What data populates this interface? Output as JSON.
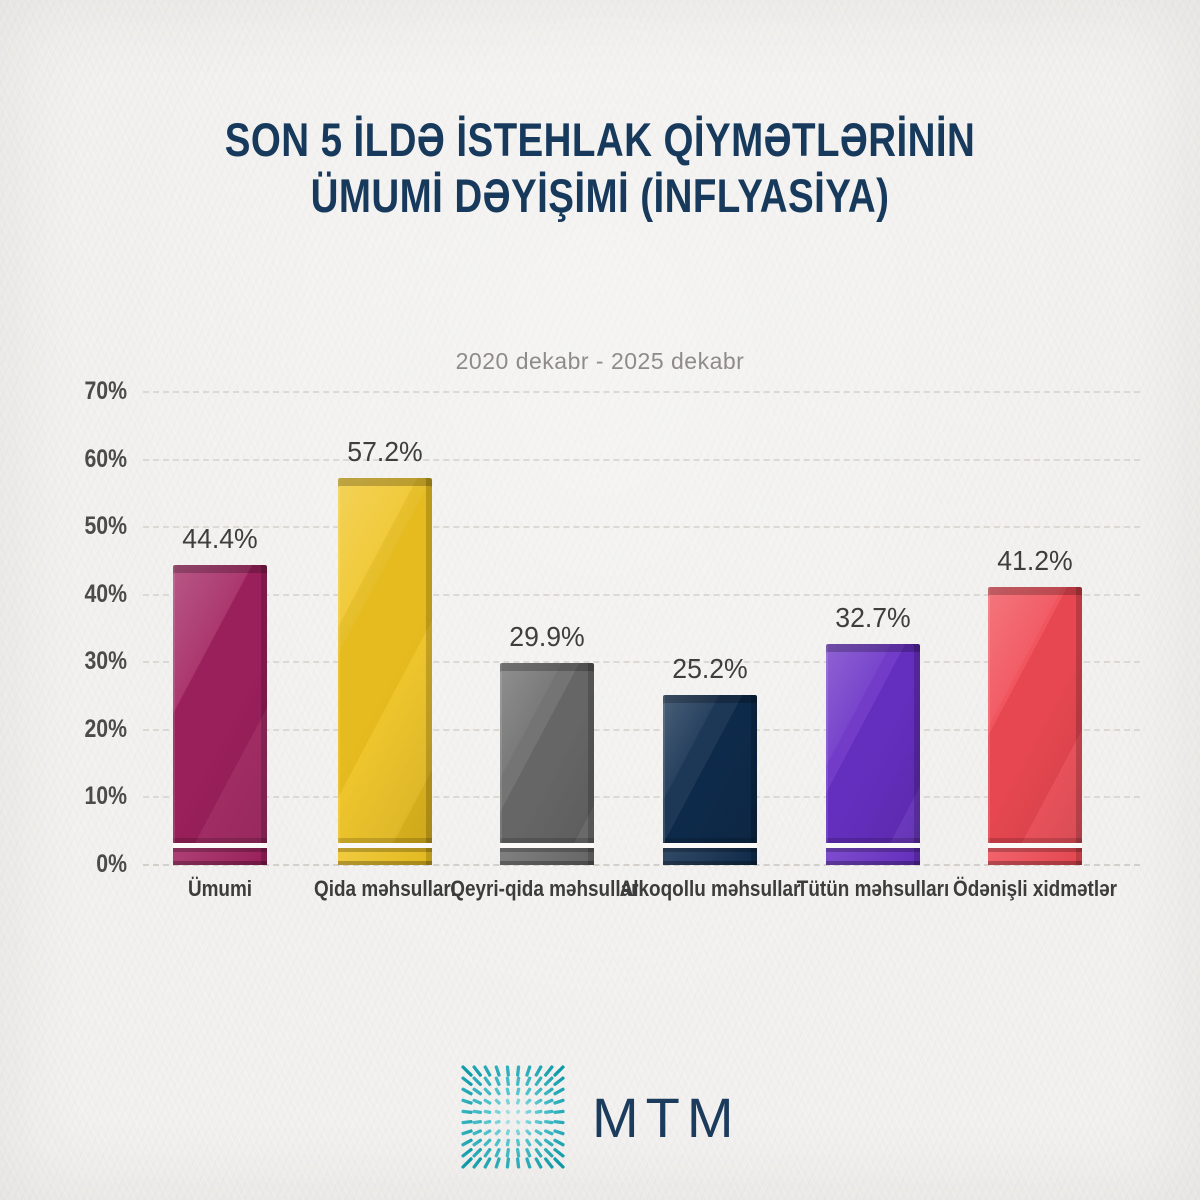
{
  "header": {
    "line1": "SON 5 İLDƏ İSTEHLAK QİYMƏTLƏRİNİN",
    "line2": "ÜMUMİ DƏYİŞİMİ (İNFLYASİYA)"
  },
  "subtitle": "2020 dekabr - 2025 dekabr",
  "chart_data": {
    "type": "bar",
    "title": "SON 5 İLDƏ İSTEHLAK QİYMƏTLƏRİNİN ÜMUMİ DƏYİŞİMİ (İNFLYASİYA)",
    "subtitle": "2020 dekabr - 2025 dekabr",
    "categories": [
      "Ümumi",
      "Qida məhsulları",
      "Qeyri-qida məhsulları",
      "Alkoqollu məhsullar",
      "Tütün məhsulları",
      "Ödənişli xidmətlər"
    ],
    "values": [
      44.4,
      57.2,
      29.9,
      25.2,
      32.7,
      41.2
    ],
    "value_labels": [
      "44.4%",
      "57.2%",
      "29.9%",
      "25.2%",
      "32.7%",
      "41.2%"
    ],
    "bar_colors": [
      "#A1215F",
      "#EFC320",
      "#6B6B6B",
      "#0F2C4D",
      "#6930C6",
      "#F04A54"
    ],
    "xlabel": "",
    "ylabel": "",
    "ylim": [
      0,
      70
    ],
    "yticks": [
      "70%",
      "60%",
      "50%",
      "40%",
      "30%",
      "20%",
      "10%",
      "0%"
    ],
    "grid": "horizontal-dashed",
    "legend": "none"
  },
  "footer": {
    "brand": "MTM",
    "icon": "starburst-grid-icon",
    "icon_color_inner": "#AEE2E6",
    "icon_color_outer": "#0D99A8",
    "brand_color": "#1C3C5E"
  }
}
